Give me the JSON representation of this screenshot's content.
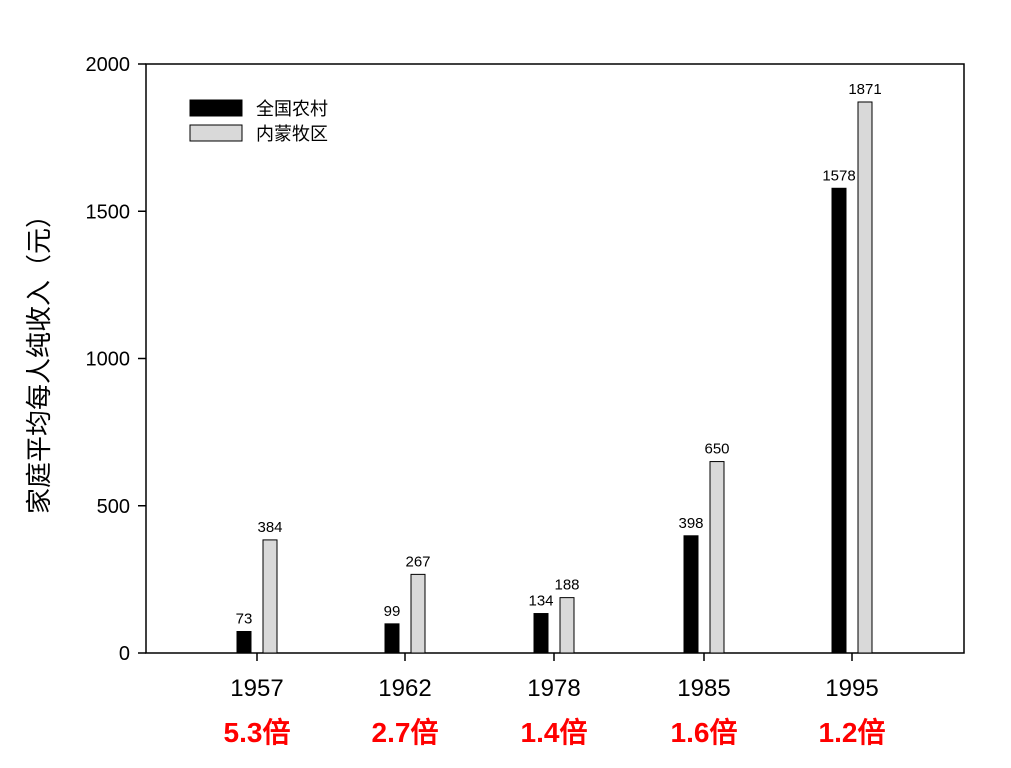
{
  "chart_data": {
    "type": "bar",
    "ylabel": "家庭平均每人纯收入（元）",
    "ylim": [
      0,
      2000
    ],
    "yticks": [
      0,
      500,
      1000,
      1500,
      2000
    ],
    "categories": [
      "1957",
      "1962",
      "1978",
      "1985",
      "1995"
    ],
    "series": [
      {
        "name": "全国农村",
        "color": "#000000",
        "values": [
          73,
          99,
          134,
          398,
          1578
        ]
      },
      {
        "name": "内蒙牧区",
        "color": "#d9d9d9",
        "values": [
          384,
          267,
          188,
          650,
          1871
        ]
      }
    ],
    "ratios": [
      "5.3倍",
      "2.7倍",
      "1.4倍",
      "1.6倍",
      "1.2倍"
    ],
    "ratio_color": "#ff0000",
    "legend_position": "top-left",
    "grid": false
  }
}
